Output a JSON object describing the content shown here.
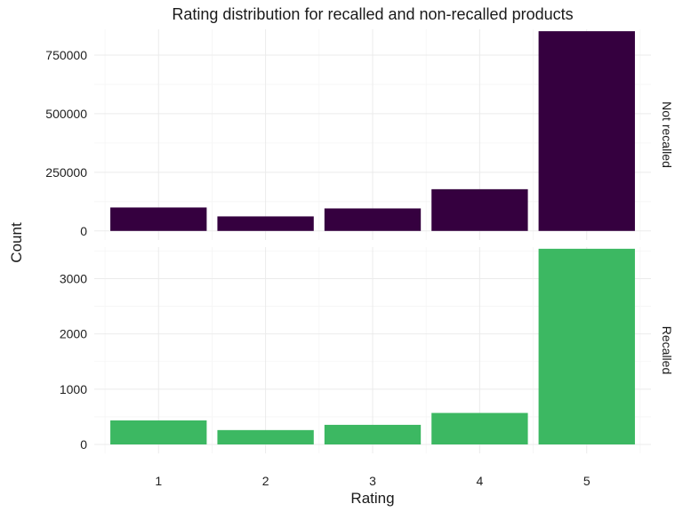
{
  "chart_data": {
    "type": "bar",
    "title": "Rating distribution for recalled and non-recalled products",
    "xlabel": "Rating",
    "ylabel": "Count",
    "categories": [
      "1",
      "2",
      "3",
      "4",
      "5"
    ],
    "grid": true,
    "facets": [
      {
        "name": "Not recalled",
        "color": "#35003f",
        "values": [
          100000,
          62000,
          96000,
          178000,
          852000
        ],
        "ylim": [
          0,
          860000
        ],
        "yticks": [
          0,
          250000,
          500000,
          750000
        ],
        "ytick_labels": [
          "0",
          "250000",
          "500000",
          "750000"
        ]
      },
      {
        "name": "Recalled",
        "color": "#3cb862",
        "values": [
          435,
          260,
          355,
          570,
          3540
        ],
        "ylim": [
          0,
          3570
        ],
        "yticks": [
          0,
          1000,
          2000,
          3000
        ],
        "ytick_labels": [
          "0",
          "1000",
          "2000",
          "3000"
        ]
      }
    ]
  }
}
